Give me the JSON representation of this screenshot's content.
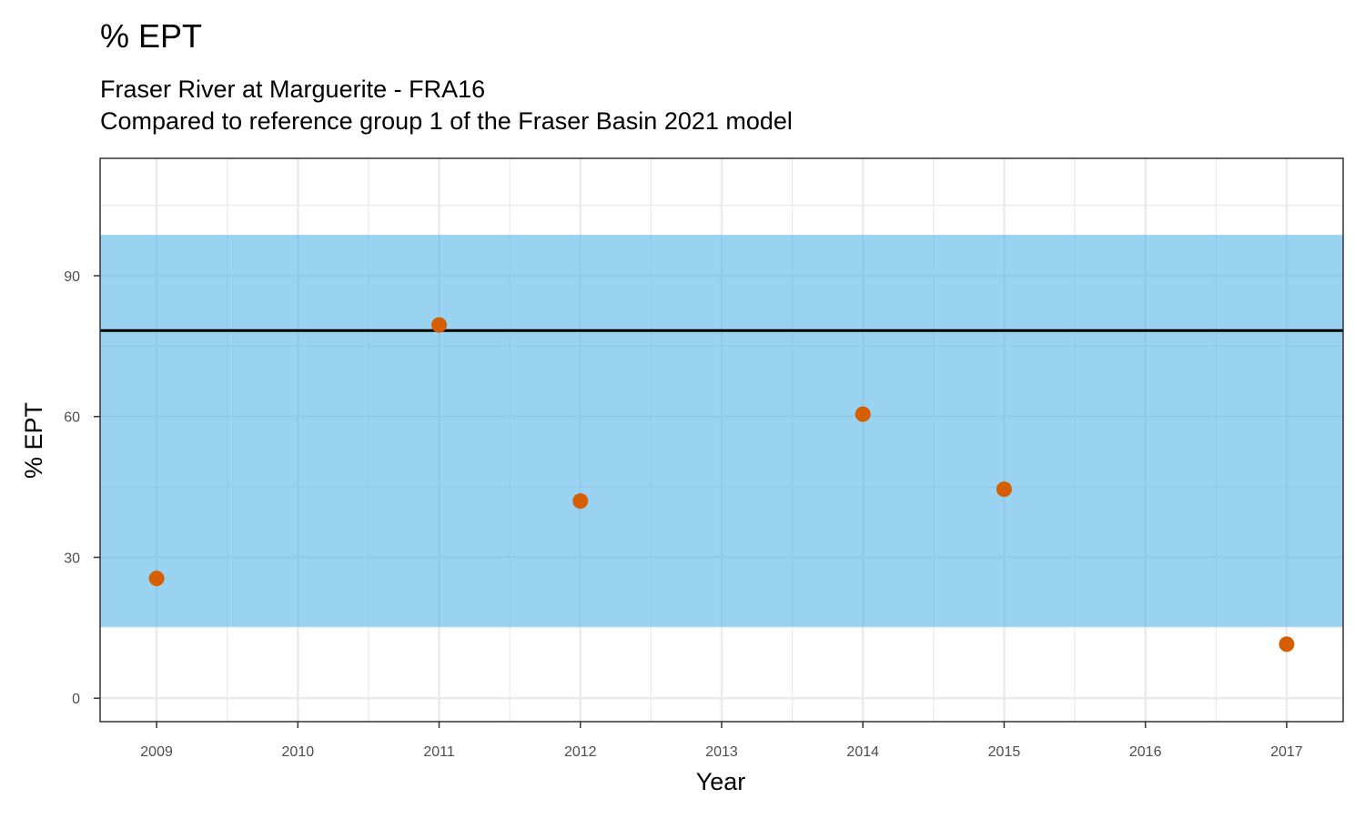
{
  "chart_data": {
    "type": "scatter",
    "title": "% EPT",
    "subtitle": [
      "Fraser River at Marguerite - FRA16",
      "Compared to reference group 1 of the Fraser Basin 2021 model"
    ],
    "xlabel": "Year",
    "ylabel": "% EPT",
    "x_ticks": [
      "2009",
      "2010",
      "2011",
      "2012",
      "2013",
      "2014",
      "2015",
      "2016",
      "2017"
    ],
    "y_ticks": [
      "0",
      "30",
      "60",
      "90"
    ],
    "xlim": [
      2008.6,
      2017.4
    ],
    "ylim": [
      -5,
      115
    ],
    "grid": true,
    "series": [
      {
        "points": [
          {
            "x": 2009,
            "y": 25.5
          },
          {
            "x": 2011,
            "y": 79.5
          },
          {
            "x": 2012,
            "y": 42.0
          },
          {
            "x": 2014,
            "y": 60.5
          },
          {
            "x": 2015,
            "y": 44.5
          },
          {
            "x": 2017,
            "y": 11.5
          }
        ]
      }
    ],
    "reference_band": {
      "lower": 15.2,
      "upper": 98.7
    },
    "reference_line": 78.3,
    "colors": {
      "points": "#d55e00",
      "band": "#56b4e9",
      "line": "#000000",
      "grid": "#ebebeb",
      "border": "#333333"
    }
  }
}
